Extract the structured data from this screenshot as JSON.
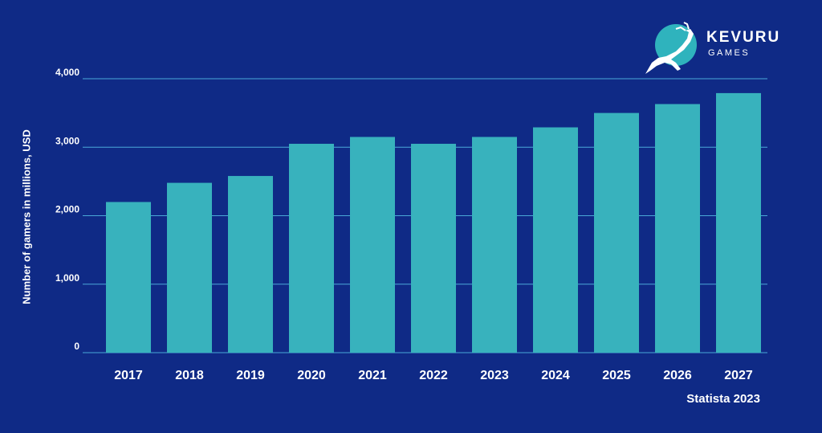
{
  "logo": {
    "name": "KEVURU",
    "sub": "GAMES",
    "colors": {
      "circle": "#2fb3bd",
      "deer": "#ffffff"
    }
  },
  "source": "Statista 2023",
  "colors": {
    "background": "#0f2a86",
    "bar": "#38b2bd",
    "grid": "#4aa8d8",
    "text": "#ffffff"
  },
  "chart_data": {
    "type": "bar",
    "categories": [
      "2017",
      "2018",
      "2019",
      "2020",
      "2021",
      "2022",
      "2023",
      "2024",
      "2025",
      "2026",
      "2027"
    ],
    "values": [
      2200,
      2480,
      2580,
      3050,
      3150,
      3050,
      3150,
      3290,
      3500,
      3630,
      3790
    ],
    "ylabel": "Number of gamers in millions, USD",
    "xlabel": "",
    "ylim": [
      0,
      4000
    ],
    "yticks": [
      0,
      1000,
      2000,
      3000,
      4000
    ],
    "ytick_labels": [
      "0",
      "1,000",
      "2,000",
      "3,000",
      "4,000"
    ],
    "grid": true,
    "legend": "none"
  }
}
